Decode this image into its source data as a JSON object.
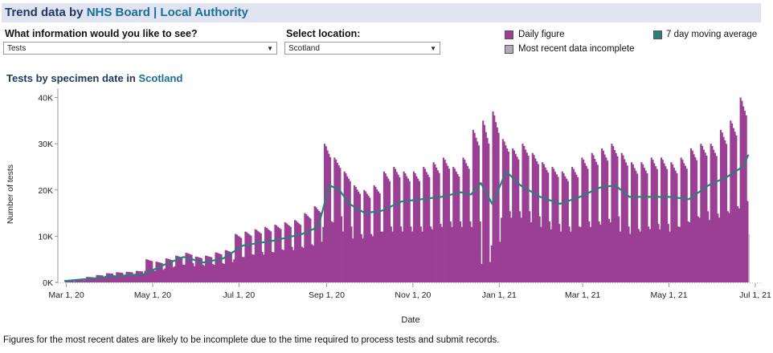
{
  "header": {
    "title_prefix": "Trend data by",
    "title_link": "NHS Board | Local Authority"
  },
  "controls": {
    "info_label": "What information would you like to see?",
    "info_value": "Tests",
    "location_label": "Select location:",
    "location_value": "Scotland"
  },
  "legend": {
    "daily": "Daily figure",
    "incomplete": "Most recent data incomplete",
    "moving_avg": "7 day moving average"
  },
  "colors": {
    "daily": "#9b3f95",
    "incomplete": "#b7a6b9",
    "moving_avg": "#2a7f7b",
    "title": "#1f3864",
    "link": "#1a6e99"
  },
  "chart_title": {
    "prefix": "Tests by specimen date in",
    "location": "Scotland"
  },
  "footnote": "Figures for the most recent dates are likely to be incomplete due to the time required to process tests and submit records.",
  "chart_data": {
    "type": "bar",
    "title": "Tests by specimen date in Scotland",
    "xlabel": "Date",
    "ylabel": "Number of tests",
    "x_range": [
      "2020-02-24",
      "2021-07-05"
    ],
    "ylim": [
      0,
      42000
    ],
    "y_ticks": [
      0,
      10000,
      20000,
      30000,
      40000
    ],
    "y_tick_labels": [
      "0K",
      "10K",
      "20K",
      "30K",
      "40K"
    ],
    "x_ticks": [
      "2020-03-01",
      "2020-05-01",
      "2020-07-01",
      "2020-09-01",
      "2020-11-01",
      "2021-01-01",
      "2021-03-01",
      "2021-05-01",
      "2021-07-01"
    ],
    "x_tick_labels": [
      "Mar 1, 20",
      "May 1, 20",
      "Jul 1, 20",
      "Sep 1, 20",
      "Nov 1, 20",
      "Jan 1, 21",
      "Mar 1, 21",
      "May 1, 21",
      "Jul 1, 21"
    ],
    "series": [
      {
        "name": "Daily figure",
        "weekly": [
          {
            "week_start": "2020-02-29",
            "peak": 400,
            "low": 200
          },
          {
            "week_start": "2020-03-07",
            "peak": 700,
            "low": 400
          },
          {
            "week_start": "2020-03-14",
            "peak": 1200,
            "low": 700
          },
          {
            "week_start": "2020-03-21",
            "peak": 1600,
            "low": 1000
          },
          {
            "week_start": "2020-03-28",
            "peak": 2000,
            "low": 1400
          },
          {
            "week_start": "2020-04-04",
            "peak": 2200,
            "low": 1500
          },
          {
            "week_start": "2020-04-11",
            "peak": 2300,
            "low": 1600
          },
          {
            "week_start": "2020-04-18",
            "peak": 2500,
            "low": 1700
          },
          {
            "week_start": "2020-04-25",
            "peak": 5000,
            "low": 2500
          },
          {
            "week_start": "2020-05-02",
            "peak": 4500,
            "low": 2500
          },
          {
            "week_start": "2020-05-09",
            "peak": 5200,
            "low": 3000
          },
          {
            "week_start": "2020-05-16",
            "peak": 5800,
            "low": 3500
          },
          {
            "week_start": "2020-05-23",
            "peak": 6400,
            "low": 3800
          },
          {
            "week_start": "2020-05-30",
            "peak": 5600,
            "low": 3500
          },
          {
            "week_start": "2020-06-06",
            "peak": 5800,
            "low": 3600
          },
          {
            "week_start": "2020-06-13",
            "peak": 6500,
            "low": 3800
          },
          {
            "week_start": "2020-06-20",
            "peak": 7000,
            "low": 4000
          },
          {
            "week_start": "2020-06-27",
            "peak": 10500,
            "low": 5000
          },
          {
            "week_start": "2020-07-04",
            "peak": 11000,
            "low": 5500
          },
          {
            "week_start": "2020-07-11",
            "peak": 11500,
            "low": 6000
          },
          {
            "week_start": "2020-07-18",
            "peak": 12000,
            "low": 6000
          },
          {
            "week_start": "2020-07-25",
            "peak": 12500,
            "low": 6500
          },
          {
            "week_start": "2020-08-01",
            "peak": 13000,
            "low": 7000
          },
          {
            "week_start": "2020-08-08",
            "peak": 13500,
            "low": 7000
          },
          {
            "week_start": "2020-08-15",
            "peak": 15000,
            "low": 7500
          },
          {
            "week_start": "2020-08-22",
            "peak": 16500,
            "low": 8000
          },
          {
            "week_start": "2020-08-29",
            "peak": 30000,
            "low": 12000
          },
          {
            "week_start": "2020-09-05",
            "peak": 27000,
            "low": 13000
          },
          {
            "week_start": "2020-09-12",
            "peak": 24000,
            "low": 11000
          },
          {
            "week_start": "2020-09-19",
            "peak": 21000,
            "low": 9500
          },
          {
            "week_start": "2020-09-26",
            "peak": 20000,
            "low": 9500
          },
          {
            "week_start": "2020-10-03",
            "peak": 21000,
            "low": 10000
          },
          {
            "week_start": "2020-10-10",
            "peak": 24000,
            "low": 11000
          },
          {
            "week_start": "2020-10-17",
            "peak": 25000,
            "low": 11000
          },
          {
            "week_start": "2020-10-24",
            "peak": 24000,
            "low": 11000
          },
          {
            "week_start": "2020-10-31",
            "peak": 24000,
            "low": 11000
          },
          {
            "week_start": "2020-11-07",
            "peak": 25000,
            "low": 11000
          },
          {
            "week_start": "2020-11-14",
            "peak": 26000,
            "low": 11500
          },
          {
            "week_start": "2020-11-21",
            "peak": 27000,
            "low": 12000
          },
          {
            "week_start": "2020-11-28",
            "peak": 25000,
            "low": 12000
          },
          {
            "week_start": "2020-12-05",
            "peak": 27000,
            "low": 12000
          },
          {
            "week_start": "2020-12-12",
            "peak": 33000,
            "low": 12000
          },
          {
            "week_start": "2020-12-19",
            "peak": 35000,
            "low": 4000
          },
          {
            "week_start": "2020-12-26",
            "peak": 37000,
            "low": 8000
          },
          {
            "week_start": "2021-01-02",
            "peak": 31000,
            "low": 14000
          },
          {
            "week_start": "2021-01-09",
            "peak": 29000,
            "low": 14000
          },
          {
            "week_start": "2021-01-16",
            "peak": 30000,
            "low": 14000
          },
          {
            "week_start": "2021-01-23",
            "peak": 28000,
            "low": 13000
          },
          {
            "week_start": "2021-01-30",
            "peak": 26000,
            "low": 12000
          },
          {
            "week_start": "2021-02-06",
            "peak": 25000,
            "low": 11500
          },
          {
            "week_start": "2021-02-13",
            "peak": 24000,
            "low": 11000
          },
          {
            "week_start": "2021-02-20",
            "peak": 25000,
            "low": 11000
          },
          {
            "week_start": "2021-02-27",
            "peak": 27000,
            "low": 12000
          },
          {
            "week_start": "2021-03-06",
            "peak": 28000,
            "low": 12000
          },
          {
            "week_start": "2021-03-13",
            "peak": 29000,
            "low": 12500
          },
          {
            "week_start": "2021-03-20",
            "peak": 30000,
            "low": 13000
          },
          {
            "week_start": "2021-03-27",
            "peak": 28000,
            "low": 11000
          },
          {
            "week_start": "2021-04-03",
            "peak": 26000,
            "low": 10500
          },
          {
            "week_start": "2021-04-10",
            "peak": 26000,
            "low": 11000
          },
          {
            "week_start": "2021-04-17",
            "peak": 27000,
            "low": 11500
          },
          {
            "week_start": "2021-04-24",
            "peak": 27000,
            "low": 11500
          },
          {
            "week_start": "2021-05-01",
            "peak": 26000,
            "low": 11000
          },
          {
            "week_start": "2021-05-08",
            "peak": 27000,
            "low": 12000
          },
          {
            "week_start": "2021-05-15",
            "peak": 29000,
            "low": 13000
          },
          {
            "week_start": "2021-05-22",
            "peak": 30000,
            "low": 14000
          },
          {
            "week_start": "2021-05-29",
            "peak": 30000,
            "low": 13500
          },
          {
            "week_start": "2021-06-05",
            "peak": 33000,
            "low": 14000
          },
          {
            "week_start": "2021-06-12",
            "peak": 35000,
            "low": 15000
          },
          {
            "week_start": "2021-06-19",
            "peak": 40000,
            "low": 16000
          }
        ]
      },
      {
        "name": "Most recent data incomplete",
        "x": [
          "2021-06-26"
        ],
        "values": [
          10500
        ]
      },
      {
        "name": "7 day moving average",
        "x": [
          "2020-02-29",
          "2020-03-21",
          "2020-04-11",
          "2020-04-25",
          "2020-05-09",
          "2020-05-23",
          "2020-06-06",
          "2020-06-20",
          "2020-07-04",
          "2020-07-25",
          "2020-08-15",
          "2020-08-26",
          "2020-09-03",
          "2020-09-10",
          "2020-09-17",
          "2020-09-28",
          "2020-10-10",
          "2020-10-24",
          "2020-11-07",
          "2020-11-21",
          "2020-12-05",
          "2020-12-12",
          "2020-12-19",
          "2020-12-27",
          "2021-01-06",
          "2021-01-16",
          "2021-01-30",
          "2021-02-13",
          "2021-02-27",
          "2021-03-13",
          "2021-03-24",
          "2021-04-03",
          "2021-04-17",
          "2021-05-01",
          "2021-05-15",
          "2021-05-29",
          "2021-06-12",
          "2021-06-22",
          "2021-06-26"
        ],
        "values": [
          300,
          900,
          1500,
          1800,
          3800,
          5500,
          4300,
          5200,
          8000,
          9000,
          10500,
          12000,
          21000,
          20000,
          17000,
          15000,
          15500,
          17500,
          18000,
          18500,
          19500,
          19000,
          21500,
          17000,
          24000,
          21000,
          18500,
          17000,
          18500,
          20500,
          21000,
          18500,
          18500,
          18500,
          18000,
          21000,
          23000,
          25000,
          27500
        ]
      }
    ],
    "grid": false,
    "legend_position": "top-right"
  }
}
